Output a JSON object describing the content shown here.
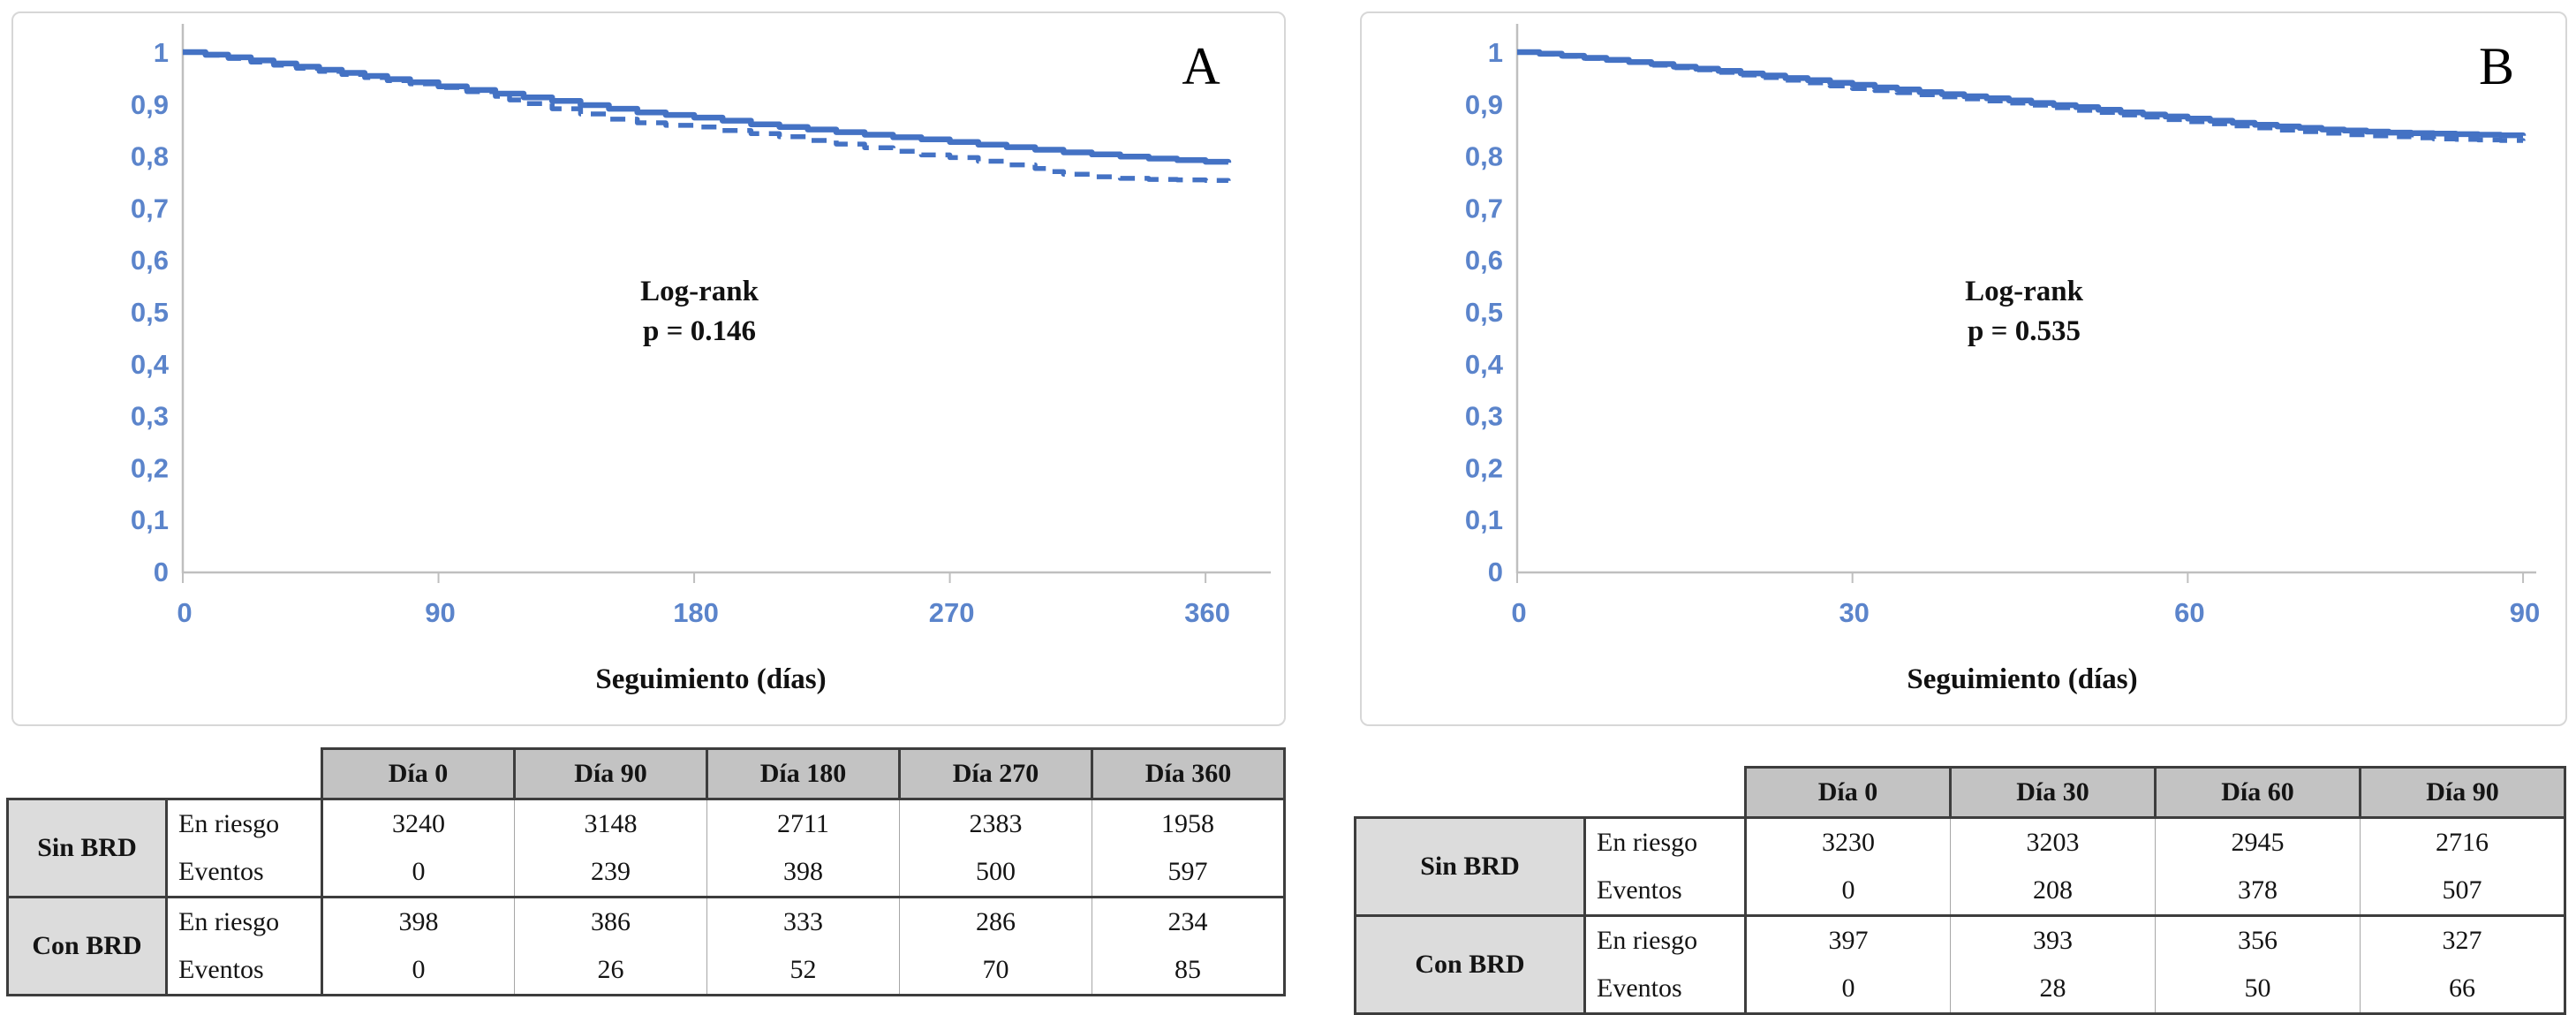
{
  "colors": {
    "curve_blue": "#4472C4",
    "tick_label_blue": "#5b84cb",
    "axis_gray": "#bfbfbf",
    "panel_border": "#d7d7d7",
    "table_header_bg": "#c3c3c3",
    "table_group_bg": "#dcdcdc",
    "table_border": "#3d3d3d",
    "text_black": "#111111"
  },
  "chart_data": [
    {
      "type": "line",
      "title": "A",
      "annotation": {
        "line1": "Log-rank",
        "line2": "p = 0.146"
      },
      "xlabel": "Seguimiento (días)",
      "ylabel": "",
      "xlim": [
        0,
        382
      ],
      "ylim": [
        0,
        1
      ],
      "grid": false,
      "legend": false,
      "x_ticks": [
        {
          "value": 0,
          "label": "0"
        },
        {
          "value": 90,
          "label": "90"
        },
        {
          "value": 180,
          "label": "180"
        },
        {
          "value": 270,
          "label": "270"
        },
        {
          "value": 360,
          "label": "360"
        }
      ],
      "y_ticks": [
        {
          "value": 1.0,
          "label": "1"
        },
        {
          "value": 0.9,
          "label": "0,9"
        },
        {
          "value": 0.8,
          "label": "0,8"
        },
        {
          "value": 0.7,
          "label": "0,7"
        },
        {
          "value": 0.6,
          "label": "0,6"
        },
        {
          "value": 0.5,
          "label": "0,5"
        },
        {
          "value": 0.4,
          "label": "0,4"
        },
        {
          "value": 0.3,
          "label": "0,3"
        },
        {
          "value": 0.2,
          "label": "0,2"
        },
        {
          "value": 0.1,
          "label": "0,1"
        },
        {
          "value": 0.0,
          "label": "0"
        }
      ],
      "series": [
        {
          "name": "Sin BRD",
          "line_style": "solid",
          "points": [
            [
              0,
              1.0
            ],
            [
              8,
              0.995
            ],
            [
              16,
              0.99
            ],
            [
              24,
              0.984
            ],
            [
              32,
              0.978
            ],
            [
              40,
              0.972
            ],
            [
              48,
              0.966
            ],
            [
              56,
              0.96
            ],
            [
              64,
              0.954
            ],
            [
              72,
              0.948
            ],
            [
              80,
              0.942
            ],
            [
              90,
              0.934
            ],
            [
              100,
              0.927
            ],
            [
              110,
              0.92
            ],
            [
              120,
              0.913
            ],
            [
              130,
              0.906
            ],
            [
              140,
              0.898
            ],
            [
              150,
              0.891
            ],
            [
              160,
              0.884
            ],
            [
              170,
              0.879
            ],
            [
              180,
              0.874
            ],
            [
              190,
              0.868
            ],
            [
              200,
              0.861
            ],
            [
              210,
              0.856
            ],
            [
              220,
              0.851
            ],
            [
              230,
              0.846
            ],
            [
              240,
              0.841
            ],
            [
              250,
              0.836
            ],
            [
              260,
              0.832
            ],
            [
              270,
              0.827
            ],
            [
              280,
              0.822
            ],
            [
              290,
              0.817
            ],
            [
              300,
              0.812
            ],
            [
              310,
              0.807
            ],
            [
              320,
              0.803
            ],
            [
              330,
              0.799
            ],
            [
              340,
              0.795
            ],
            [
              350,
              0.792
            ],
            [
              360,
              0.789
            ],
            [
              368,
              0.787
            ]
          ]
        },
        {
          "name": "Con BRD",
          "line_style": "dashed",
          "points": [
            [
              0,
              1.0
            ],
            [
              8,
              0.994
            ],
            [
              16,
              0.988
            ],
            [
              24,
              0.981
            ],
            [
              32,
              0.975
            ],
            [
              40,
              0.969
            ],
            [
              48,
              0.963
            ],
            [
              56,
              0.957
            ],
            [
              64,
              0.951
            ],
            [
              72,
              0.945
            ],
            [
              80,
              0.939
            ],
            [
              90,
              0.932
            ],
            [
              100,
              0.924
            ],
            [
              110,
              0.915
            ],
            [
              115,
              0.908
            ],
            [
              120,
              0.901
            ],
            [
              130,
              0.891
            ],
            [
              140,
              0.881
            ],
            [
              150,
              0.871
            ],
            [
              160,
              0.864
            ],
            [
              170,
              0.859
            ],
            [
              180,
              0.856
            ],
            [
              190,
              0.849
            ],
            [
              200,
              0.843
            ],
            [
              210,
              0.837
            ],
            [
              220,
              0.83
            ],
            [
              230,
              0.823
            ],
            [
              240,
              0.816
            ],
            [
              250,
              0.809
            ],
            [
              260,
              0.802
            ],
            [
              270,
              0.797
            ],
            [
              280,
              0.79
            ],
            [
              290,
              0.783
            ],
            [
              300,
              0.776
            ],
            [
              305,
              0.77
            ],
            [
              310,
              0.765
            ],
            [
              320,
              0.76
            ],
            [
              330,
              0.757
            ],
            [
              340,
              0.755
            ],
            [
              350,
              0.754
            ],
            [
              360,
              0.753
            ],
            [
              368,
              0.752
            ]
          ]
        }
      ]
    },
    {
      "type": "line",
      "title": "B",
      "annotation": {
        "line1": "Log-rank",
        "line2": "p = 0.535"
      },
      "xlabel": "Seguimiento (días)",
      "ylabel": "",
      "xlim": [
        0,
        91
      ],
      "ylim": [
        0,
        1
      ],
      "grid": false,
      "legend": false,
      "x_ticks": [
        {
          "value": 0,
          "label": "0"
        },
        {
          "value": 30,
          "label": "30"
        },
        {
          "value": 60,
          "label": "60"
        },
        {
          "value": 90,
          "label": "90"
        }
      ],
      "y_ticks": [
        {
          "value": 1.0,
          "label": "1"
        },
        {
          "value": 0.9,
          "label": "0,9"
        },
        {
          "value": 0.8,
          "label": "0,8"
        },
        {
          "value": 0.7,
          "label": "0,7"
        },
        {
          "value": 0.6,
          "label": "0,6"
        },
        {
          "value": 0.5,
          "label": "0,5"
        },
        {
          "value": 0.4,
          "label": "0,4"
        },
        {
          "value": 0.3,
          "label": "0,3"
        },
        {
          "value": 0.2,
          "label": "0,2"
        },
        {
          "value": 0.1,
          "label": "0,1"
        },
        {
          "value": 0.0,
          "label": "0"
        }
      ],
      "series": [
        {
          "name": "Sin BRD",
          "line_style": "solid",
          "points": [
            [
              0,
              1.0
            ],
            [
              2,
              0.997
            ],
            [
              4,
              0.993
            ],
            [
              6,
              0.989
            ],
            [
              8,
              0.985
            ],
            [
              10,
              0.981
            ],
            [
              12,
              0.977
            ],
            [
              14,
              0.972
            ],
            [
              16,
              0.968
            ],
            [
              18,
              0.964
            ],
            [
              20,
              0.959
            ],
            [
              22,
              0.955
            ],
            [
              24,
              0.95
            ],
            [
              26,
              0.946
            ],
            [
              28,
              0.941
            ],
            [
              30,
              0.937
            ],
            [
              32,
              0.932
            ],
            [
              34,
              0.928
            ],
            [
              36,
              0.923
            ],
            [
              38,
              0.919
            ],
            [
              40,
              0.915
            ],
            [
              42,
              0.911
            ],
            [
              44,
              0.907
            ],
            [
              46,
              0.902
            ],
            [
              48,
              0.898
            ],
            [
              50,
              0.894
            ],
            [
              52,
              0.889
            ],
            [
              54,
              0.884
            ],
            [
              56,
              0.88
            ],
            [
              58,
              0.876
            ],
            [
              60,
              0.872
            ],
            [
              62,
              0.868
            ],
            [
              64,
              0.864
            ],
            [
              66,
              0.86
            ],
            [
              68,
              0.857
            ],
            [
              70,
              0.854
            ],
            [
              72,
              0.851
            ],
            [
              74,
              0.849
            ],
            [
              76,
              0.847
            ],
            [
              78,
              0.845
            ],
            [
              80,
              0.844
            ],
            [
              82,
              0.843
            ],
            [
              84,
              0.842
            ],
            [
              86,
              0.841
            ],
            [
              88,
              0.84
            ],
            [
              90,
              0.839
            ]
          ]
        },
        {
          "name": "Con BRD",
          "line_style": "dashed",
          "points": [
            [
              0,
              1.0
            ],
            [
              2,
              0.996
            ],
            [
              4,
              0.992
            ],
            [
              6,
              0.988
            ],
            [
              8,
              0.984
            ],
            [
              10,
              0.98
            ],
            [
              12,
              0.975
            ],
            [
              14,
              0.97
            ],
            [
              16,
              0.966
            ],
            [
              18,
              0.961
            ],
            [
              20,
              0.956
            ],
            [
              22,
              0.951
            ],
            [
              24,
              0.946
            ],
            [
              26,
              0.941
            ],
            [
              28,
              0.935
            ],
            [
              30,
              0.93
            ],
            [
              32,
              0.926
            ],
            [
              34,
              0.922
            ],
            [
              36,
              0.918
            ],
            [
              38,
              0.914
            ],
            [
              40,
              0.91
            ],
            [
              42,
              0.906
            ],
            [
              44,
              0.902
            ],
            [
              46,
              0.898
            ],
            [
              48,
              0.893
            ],
            [
              50,
              0.888
            ],
            [
              52,
              0.884
            ],
            [
              54,
              0.879
            ],
            [
              56,
              0.875
            ],
            [
              58,
              0.87
            ],
            [
              60,
              0.866
            ],
            [
              62,
              0.862
            ],
            [
              64,
              0.858
            ],
            [
              66,
              0.854
            ],
            [
              68,
              0.85
            ],
            [
              70,
              0.847
            ],
            [
              72,
              0.844
            ],
            [
              74,
              0.841
            ],
            [
              76,
              0.839
            ],
            [
              78,
              0.837
            ],
            [
              80,
              0.835
            ],
            [
              82,
              0.833
            ],
            [
              84,
              0.832
            ],
            [
              86,
              0.831
            ],
            [
              88,
              0.83
            ],
            [
              90,
              0.829
            ]
          ]
        }
      ]
    }
  ],
  "risk_tables": [
    {
      "col_headers": [
        "Día 0",
        "Día 90",
        "Día 180",
        "Día 270",
        "Día 360"
      ],
      "groups": [
        {
          "label": "Sin BRD",
          "rows": [
            {
              "label": "En riesgo",
              "values": [
                "3240",
                "3148",
                "2711",
                "2383",
                "1958"
              ]
            },
            {
              "label": "Eventos",
              "values": [
                "0",
                "239",
                "398",
                "500",
                "597"
              ]
            }
          ]
        },
        {
          "label": "Con BRD",
          "rows": [
            {
              "label": "En riesgo",
              "values": [
                "398",
                "386",
                "333",
                "286",
                "234"
              ]
            },
            {
              "label": "Eventos",
              "values": [
                "0",
                "26",
                "52",
                "70",
                "85"
              ]
            }
          ]
        }
      ]
    },
    {
      "col_headers": [
        "Día 0",
        "Día 30",
        "Día 60",
        "Día 90"
      ],
      "groups": [
        {
          "label": "Sin BRD",
          "rows": [
            {
              "label": "En riesgo",
              "values": [
                "3230",
                "3203",
                "2945",
                "2716"
              ]
            },
            {
              "label": "Eventos",
              "values": [
                "0",
                "208",
                "378",
                "507"
              ]
            }
          ]
        },
        {
          "label": "Con BRD",
          "rows": [
            {
              "label": "En riesgo",
              "values": [
                "397",
                "393",
                "356",
                "327"
              ]
            },
            {
              "label": "Eventos",
              "values": [
                "0",
                "28",
                "50",
                "66"
              ]
            }
          ]
        }
      ]
    }
  ]
}
